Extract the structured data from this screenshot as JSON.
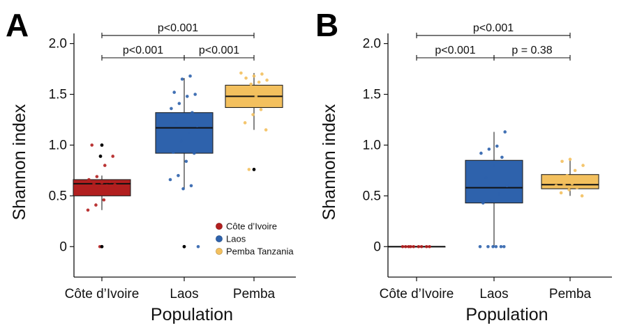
{
  "chart_data": [
    {
      "panel": "A",
      "type": "box",
      "xlabel": "Population",
      "ylabel": "Shannon index",
      "categories": [
        "Côte d’Ivoire",
        "Laos",
        "Pemba"
      ],
      "ylim": [
        -0.3,
        2.1
      ],
      "yticks": [
        {
          "value": 0,
          "label": "0"
        },
        {
          "value": 0.5,
          "label": "0.5"
        },
        {
          "value": 1.0,
          "label": "1.0"
        },
        {
          "value": 1.5,
          "label": "1.5"
        },
        {
          "value": 2.0,
          "label": "2.0"
        }
      ],
      "boxes": [
        {
          "category": "Côte d’Ivoire",
          "q1": 0.5,
          "median": 0.62,
          "q3": 0.66,
          "whisker_low": 0.36,
          "whisker_high": 0.7,
          "color": "#b21f1f"
        },
        {
          "category": "Laos",
          "q1": 0.92,
          "median": 1.17,
          "q3": 1.32,
          "whisker_low": 0.57,
          "whisker_high": 1.66,
          "color": "#2e62ac"
        },
        {
          "category": "Pemba",
          "q1": 1.37,
          "median": 1.48,
          "q3": 1.59,
          "whisker_low": 1.15,
          "whisker_high": 1.71,
          "color": "#f3c05e"
        }
      ],
      "points": [
        {
          "category": "Côte d’Ivoire",
          "values": [
            0.36,
            0.41,
            0.46,
            0.52,
            0.55,
            0.58,
            0.6,
            0.61,
            0.62,
            0.63,
            0.64,
            0.66,
            0.69,
            0.8,
            0.89,
            1.0,
            0.0
          ]
        },
        {
          "category": "Laos",
          "values": [
            0.57,
            0.6,
            0.66,
            0.7,
            0.84,
            0.92,
            0.93,
            1.04,
            1.12,
            1.19,
            1.22,
            1.26,
            1.32,
            1.36,
            1.41,
            1.48,
            1.5,
            1.52,
            1.65,
            1.68,
            0.0
          ]
        },
        {
          "category": "Pemba",
          "values": [
            1.15,
            1.22,
            1.3,
            1.35,
            1.4,
            1.44,
            1.48,
            1.52,
            1.56,
            1.6,
            1.62,
            1.64,
            1.66,
            1.68,
            1.7,
            1.71,
            0.76
          ]
        }
      ],
      "outliers": [
        {
          "category": "Côte d’Ivoire",
          "values": [
            1.0,
            0.89,
            0.0
          ]
        },
        {
          "category": "Laos",
          "values": [
            0.0
          ]
        },
        {
          "category": "Pemba",
          "values": [
            0.76
          ]
        }
      ],
      "comparisons": [
        {
          "from": "Côte d’Ivoire",
          "to": "Laos",
          "label": "p<0.001",
          "y": 1.86
        },
        {
          "from": "Laos",
          "to": "Pemba",
          "label": "p<0.001",
          "y": 1.86
        },
        {
          "from": "Côte d’Ivoire",
          "to": "Pemba",
          "label": "p<0.001",
          "y": 2.08
        }
      ],
      "legend": {
        "placement": "bottom-right",
        "entries": [
          {
            "name": "Côte d’Ivoire",
            "color": "#b21f1f"
          },
          {
            "name": "Laos",
            "color": "#2e62ac"
          },
          {
            "name": "Pemba Tanzania",
            "color": "#f3c05e"
          }
        ]
      }
    },
    {
      "panel": "B",
      "type": "box",
      "xlabel": "Population",
      "ylabel": "Shannon index",
      "categories": [
        "Côte d’Ivoire",
        "Laos",
        "Pemba"
      ],
      "ylim": [
        -0.3,
        2.1
      ],
      "yticks": [
        {
          "value": 0,
          "label": "0"
        },
        {
          "value": 0.5,
          "label": "0.5"
        },
        {
          "value": 1.0,
          "label": "1.0"
        },
        {
          "value": 1.5,
          "label": "1.5"
        },
        {
          "value": 2.0,
          "label": "2.0"
        }
      ],
      "boxes": [
        {
          "category": "Côte d’Ivoire",
          "q1": 0.0,
          "median": 0.0,
          "q3": 0.0,
          "whisker_low": 0.0,
          "whisker_high": 0.0,
          "color": "#b21f1f"
        },
        {
          "category": "Laos",
          "q1": 0.43,
          "median": 0.58,
          "q3": 0.85,
          "whisker_low": 0.0,
          "whisker_high": 1.13,
          "color": "#2e62ac"
        },
        {
          "category": "Pemba",
          "q1": 0.57,
          "median": 0.61,
          "q3": 0.71,
          "whisker_low": 0.5,
          "whisker_high": 0.85,
          "color": "#f3c05e"
        }
      ],
      "points": [
        {
          "category": "Côte d’Ivoire",
          "values": [
            0,
            0,
            0,
            0,
            0,
            0,
            0,
            0,
            0
          ]
        },
        {
          "category": "Laos",
          "values": [
            0,
            0,
            0,
            0,
            0,
            0,
            0.43,
            0.45,
            0.52,
            0.6,
            0.68,
            0.8,
            0.88,
            0.92,
            0.96,
            0.99,
            1.13
          ]
        },
        {
          "category": "Pemba",
          "values": [
            0.5,
            0.53,
            0.56,
            0.58,
            0.6,
            0.61,
            0.62,
            0.64,
            0.67,
            0.7,
            0.75,
            0.8,
            0.84,
            0.86
          ]
        }
      ],
      "outliers": [],
      "comparisons": [
        {
          "from": "Côte d’Ivoire",
          "to": "Laos",
          "label": "p<0.001",
          "y": 1.86
        },
        {
          "from": "Laos",
          "to": "Pemba",
          "label": "p = 0.38",
          "y": 1.86
        },
        {
          "from": "Côte d’Ivoire",
          "to": "Pemba",
          "label": "p<0.001",
          "y": 2.08
        }
      ]
    }
  ]
}
